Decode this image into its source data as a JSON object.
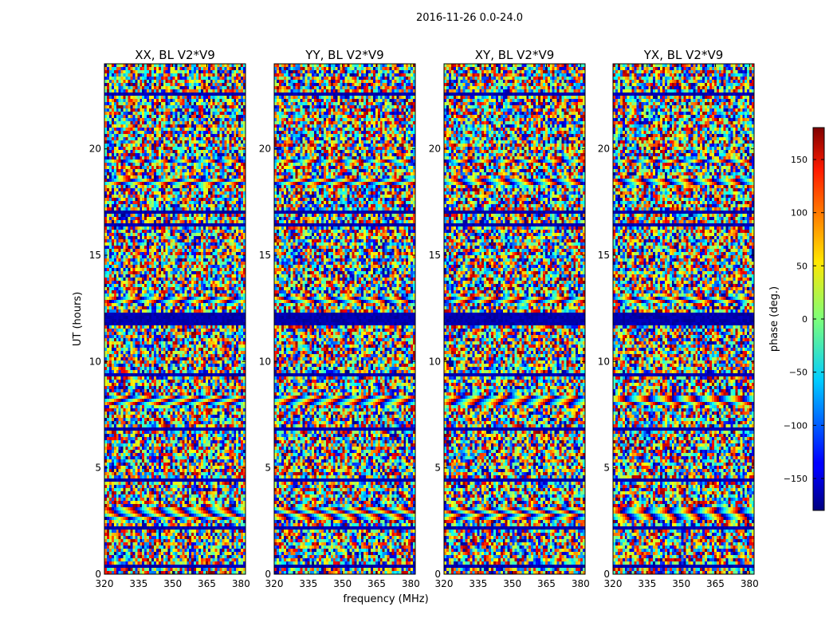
{
  "chart_data": {
    "type": "heatmap",
    "suptitle": "2016-11-26 0.0-24.0",
    "xlabel": "frequency (MHz)",
    "ylabel": "UT (hours)",
    "xlim": [
      320,
      382
    ],
    "ylim": [
      0,
      24
    ],
    "x_ticks": [
      320,
      335,
      350,
      365,
      380
    ],
    "x_tick_labels": [
      "320",
      "335",
      "350",
      "365",
      "380"
    ],
    "y_ticks": [
      0,
      5,
      10,
      15,
      20
    ],
    "y_tick_labels": [
      "0",
      "5",
      "10",
      "15",
      "20"
    ],
    "panels": [
      {
        "title": "XX, BL V2*V9",
        "pol": "XX"
      },
      {
        "title": "YY, BL V2*V9",
        "pol": "YY"
      },
      {
        "title": "XY, BL V2*V9",
        "pol": "XY"
      },
      {
        "title": "YX, BL V2*V9",
        "pol": "YX"
      }
    ],
    "colorbar": {
      "label": "phase (deg.)",
      "colormap": "jet",
      "range": [
        -180,
        180
      ],
      "ticks": [
        -150,
        -100,
        -50,
        0,
        50,
        100,
        150
      ],
      "tick_labels": [
        "−150",
        "−100",
        "−50",
        "0",
        "50",
        "100",
        "150"
      ]
    },
    "flagged_bands_hours": [
      [
        11.65,
        11.95
      ],
      [
        12.05,
        12.35
      ],
      [
        16.95,
        17.15
      ],
      [
        16.4,
        16.55
      ],
      [
        9.25,
        9.4
      ],
      [
        4.3,
        4.5
      ],
      [
        6.75,
        6.85
      ],
      [
        0.35,
        0.45
      ],
      [
        22.45,
        22.6
      ],
      [
        7.45,
        7.55
      ],
      [
        2.15,
        2.25
      ],
      [
        19.0,
        19.1
      ]
    ],
    "coherent_bands_hours": [
      [
        7.9,
        8.4
      ],
      [
        12.8,
        13.0
      ],
      [
        18.3,
        18.6
      ],
      [
        19.3,
        19.5
      ],
      [
        2.6,
        3.2
      ]
    ]
  }
}
